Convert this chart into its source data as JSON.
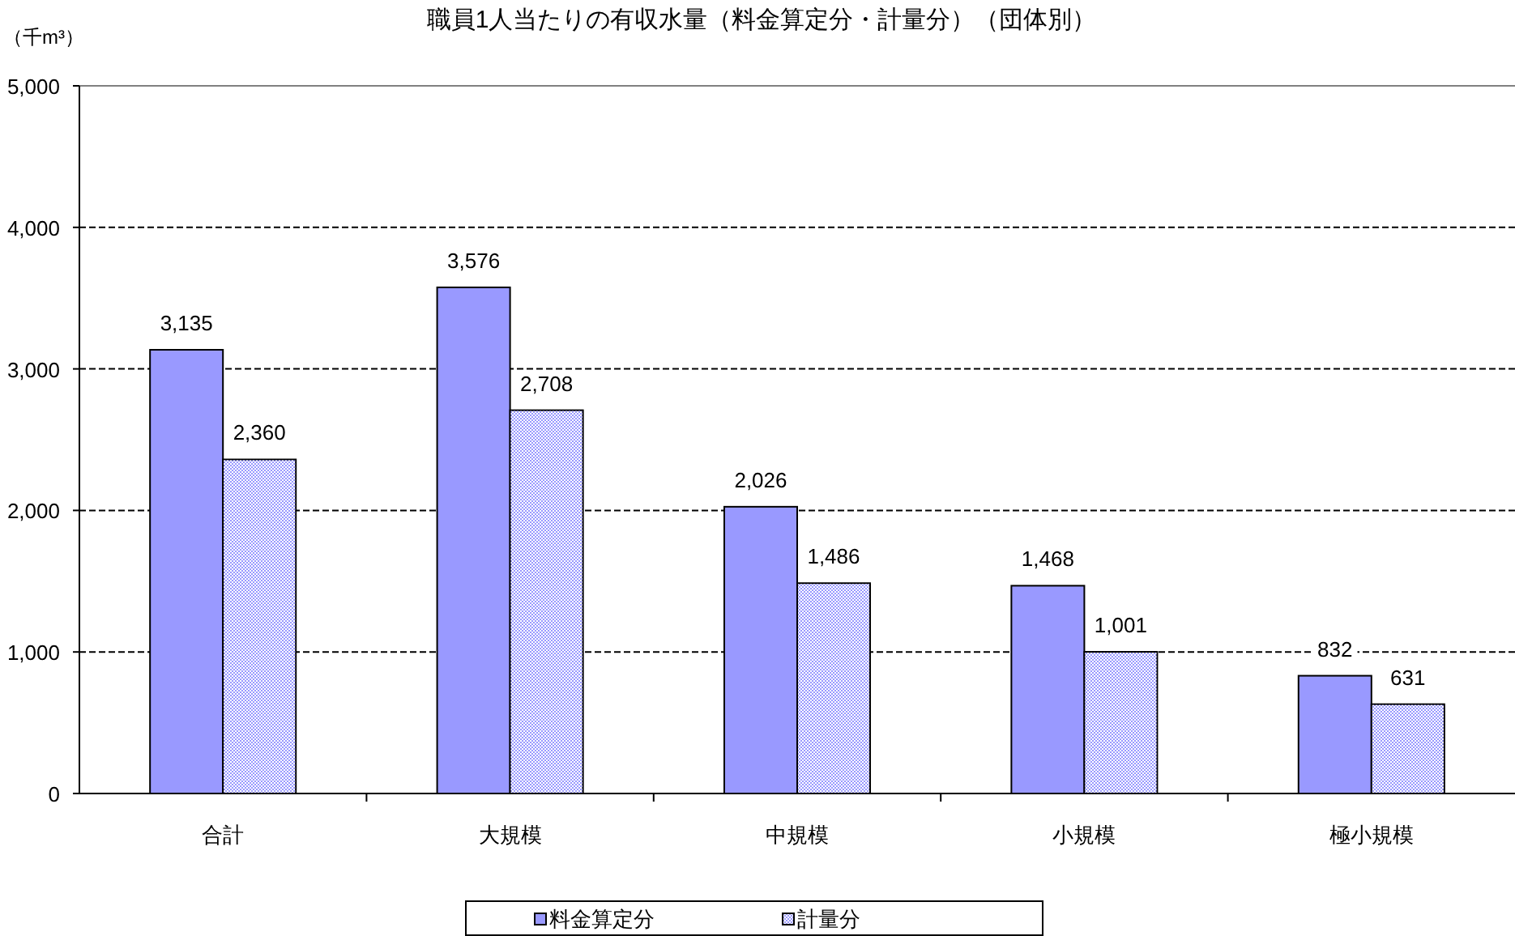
{
  "chart_data": {
    "type": "bar",
    "title": "職員1人当たりの有収水量（料金算定分・計量分）（団体別）",
    "ylabel": "（千m³）",
    "categories": [
      "合計",
      "大規模",
      "中規模",
      "小規模",
      "極小規模"
    ],
    "series": [
      {
        "name": "料金算定分",
        "color": "#9999ff",
        "values": [
          3135,
          3576,
          2026,
          1468,
          832
        ],
        "value_labels": [
          "3,135",
          "3,576",
          "2,026",
          "1,468",
          "832"
        ]
      },
      {
        "name": "計量分",
        "color": "#9999ff",
        "values": [
          2360,
          2708,
          1486,
          1001,
          631
        ],
        "value_labels": [
          "2,360",
          "2,708",
          "1,486",
          "1,001",
          "631"
        ]
      }
    ],
    "ylim": [
      0,
      5000
    ],
    "yticks": [
      {
        "value": 0,
        "label": "0"
      },
      {
        "value": 1000,
        "label": "1,000"
      },
      {
        "value": 2000,
        "label": "2,000"
      },
      {
        "value": 3000,
        "label": "3,000"
      },
      {
        "value": 4000,
        "label": "4,000"
      },
      {
        "value": 5000,
        "label": "5,000"
      }
    ],
    "grid": "y",
    "legend": "bottom"
  }
}
